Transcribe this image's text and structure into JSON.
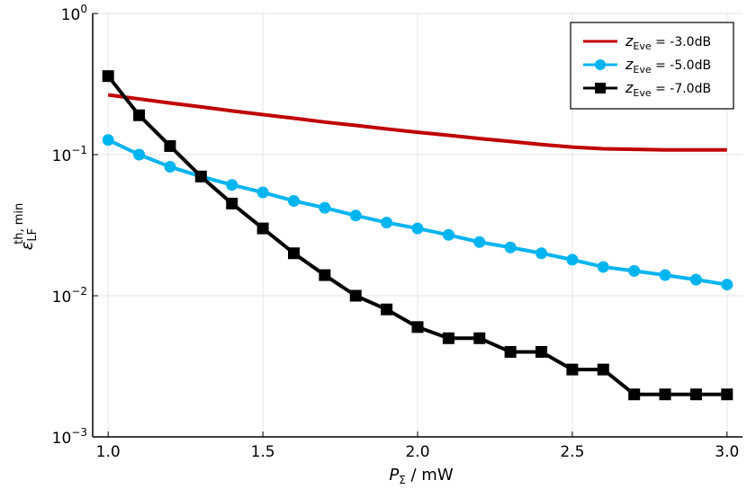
{
  "chart_data": {
    "type": "line",
    "title": "",
    "xlabel": "P_Σ / mW",
    "xlabel_main": "P",
    "xlabel_sub": "Σ",
    "xlabel_rest": " / mW",
    "ylabel": "ε_LF^{th, min}",
    "ylabel_main": "ε",
    "ylabel_sub": "LF",
    "ylabel_sup": "th, min",
    "yscale": "log",
    "xlim": [
      0.95,
      3.05
    ],
    "ylim": [
      0.001,
      1
    ],
    "grid": true,
    "legend_position": "top-right",
    "x_ticks": [
      {
        "value": 1.0,
        "label": "1.0"
      },
      {
        "value": 1.5,
        "label": "1.5"
      },
      {
        "value": 2.0,
        "label": "2.0"
      },
      {
        "value": 2.5,
        "label": "2.5"
      },
      {
        "value": 3.0,
        "label": "3.0"
      }
    ],
    "y_ticks": [
      {
        "value": 1,
        "base": "10",
        "exp": "0"
      },
      {
        "value": 0.1,
        "base": "10",
        "exp": "−1"
      },
      {
        "value": 0.01,
        "base": "10",
        "exp": "−2"
      },
      {
        "value": 0.001,
        "base": "10",
        "exp": "−3"
      }
    ],
    "x": [
      1.0,
      1.1,
      1.2,
      1.3,
      1.4,
      1.5,
      1.6,
      1.7,
      1.8,
      1.9,
      2.0,
      2.1,
      2.2,
      2.3,
      2.4,
      2.5,
      2.6,
      2.7,
      2.8,
      2.9,
      3.0
    ],
    "series": [
      {
        "name": "z_Eve = -3.0dB",
        "legend_prefix": "z",
        "legend_sub": "Eve",
        "legend_value": " = -3.0dB",
        "color": "#c00000",
        "marker": "none",
        "values": [
          0.265,
          0.248,
          0.232,
          0.218,
          0.204,
          0.192,
          0.181,
          0.17,
          0.161,
          0.152,
          0.144,
          0.137,
          0.13,
          0.124,
          0.118,
          0.113,
          0.11,
          0.109,
          0.108,
          0.108,
          0.108
        ]
      },
      {
        "name": "z_Eve = -5.0dB",
        "legend_prefix": "z",
        "legend_sub": "Eve",
        "legend_value": " = -5.0dB",
        "color": "#00b4f0",
        "marker": "circle",
        "values": [
          0.127,
          0.1,
          0.082,
          0.07,
          0.061,
          0.054,
          0.047,
          0.042,
          0.037,
          0.033,
          0.03,
          0.027,
          0.024,
          0.022,
          0.02,
          0.018,
          0.016,
          0.015,
          0.014,
          0.013,
          0.012
        ]
      },
      {
        "name": "z_Eve = -7.0dB",
        "legend_prefix": "z",
        "legend_sub": "Eve",
        "legend_value": " = -7.0dB",
        "color": "#000000",
        "marker": "square",
        "values": [
          0.36,
          0.19,
          0.115,
          0.07,
          0.045,
          0.03,
          0.02,
          0.014,
          0.01,
          0.008,
          0.006,
          0.005,
          0.005,
          0.004,
          0.004,
          0.003,
          0.003,
          0.002,
          0.002,
          0.002,
          0.002
        ]
      }
    ]
  }
}
